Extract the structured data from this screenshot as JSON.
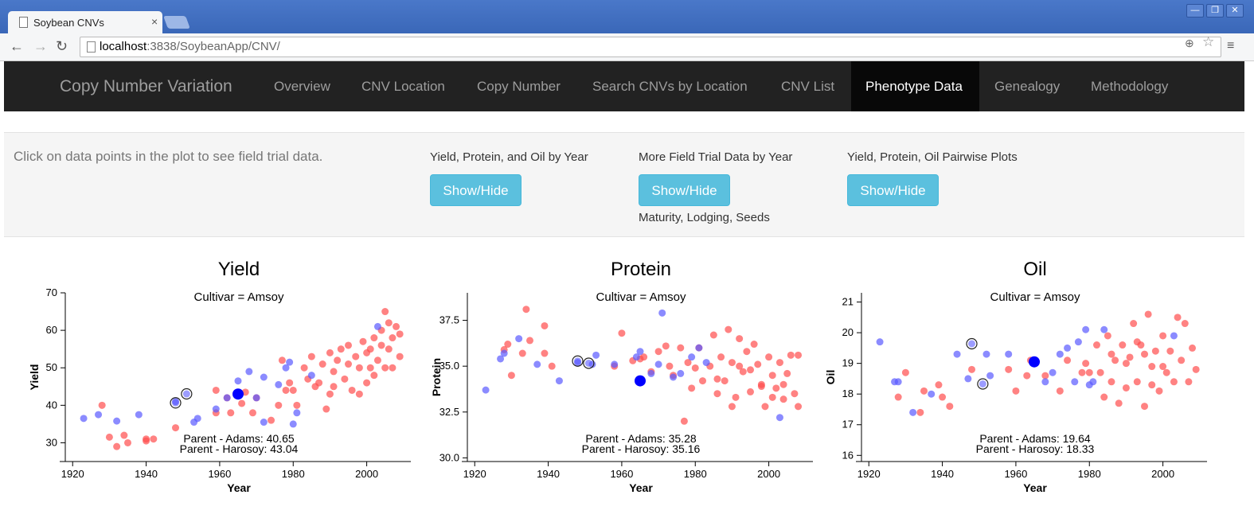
{
  "browser": {
    "tab_title": "Soybean CNVs",
    "tab_close": "×",
    "url_host": "localhost",
    "url_path": ":3838/SoybeanApp/CNV/",
    "window_buttons": [
      "—",
      "❐",
      "✕"
    ]
  },
  "navbar": {
    "brand": "Copy Number Variation",
    "items": [
      "Overview",
      "CNV Location",
      "Copy Number",
      "Search CNVs by Location",
      "CNV List",
      "Phenotype Data",
      "Genealogy",
      "Methodology"
    ],
    "active_index": 5
  },
  "panel": {
    "hint": "Click on data points in the plot to see field trial data.",
    "groups": [
      {
        "label": "Yield, Protein, and Oil by Year",
        "button": "Show/Hide",
        "sub": ""
      },
      {
        "label": "More Field Trial Data by Year",
        "button": "Show/Hide",
        "sub": "Maturity, Lodging, Seeds"
      },
      {
        "label": "Yield, Protein, Oil Pairwise Plots",
        "button": "Show/Hide",
        "sub": ""
      }
    ]
  },
  "colors": {
    "red": "#ff4d4d",
    "blue": "#5a5aff",
    "highlight": "#0000ff",
    "button": "#5bc0de"
  },
  "chart_data": [
    {
      "type": "scatter",
      "title": "Yield",
      "subtitle": "Cultivar = Amsoy",
      "xlabel": "Year",
      "ylabel": "Yield",
      "xlim": [
        1918,
        2012
      ],
      "ylim": [
        25,
        70
      ],
      "xticks": [
        1920,
        1940,
        1960,
        1980,
        2000
      ],
      "yticks": [
        30,
        40,
        50,
        60,
        70
      ],
      "ytick_labels": [
        "30",
        "40",
        "50",
        "60",
        "70"
      ],
      "annotations": [
        "Parent - Adams: 40.65",
        "Parent - Harosoy: 43.04"
      ],
      "highlight": {
        "x": 1965,
        "y": 43
      },
      "parents": [
        {
          "x": 1948,
          "y": 40.65
        },
        {
          "x": 1951,
          "y": 43.04
        }
      ],
      "series_blue": [
        [
          1923,
          36.5
        ],
        [
          1927,
          37.5
        ],
        [
          1932,
          35.8
        ],
        [
          1938,
          37.5
        ],
        [
          1948,
          41
        ],
        [
          1953,
          35.5
        ],
        [
          1954,
          36.5
        ],
        [
          1959,
          39
        ],
        [
          1962,
          42
        ],
        [
          1965,
          46.5
        ],
        [
          1968,
          49
        ],
        [
          1970,
          42
        ],
        [
          1972,
          47.5
        ],
        [
          1972,
          35.5
        ],
        [
          1976,
          45.5
        ],
        [
          1978,
          50
        ],
        [
          1979,
          51.5
        ],
        [
          1980,
          35
        ],
        [
          1981,
          38
        ],
        [
          1985,
          48
        ],
        [
          2003,
          61
        ]
      ],
      "series_red": [
        [
          1928,
          40
        ],
        [
          1930,
          31.5
        ],
        [
          1932,
          29
        ],
        [
          1934,
          32
        ],
        [
          1935,
          30
        ],
        [
          1940,
          31
        ],
        [
          1940,
          30.5
        ],
        [
          1942,
          31
        ],
        [
          1948,
          34
        ],
        [
          1959,
          38
        ],
        [
          1959,
          44
        ],
        [
          1962,
          42
        ],
        [
          1963,
          38
        ],
        [
          1966,
          40.5
        ],
        [
          1967,
          43.5
        ],
        [
          1969,
          38
        ],
        [
          1970,
          42
        ],
        [
          1974,
          36
        ],
        [
          1976,
          40
        ],
        [
          1977,
          52
        ],
        [
          1978,
          44
        ],
        [
          1979,
          46
        ],
        [
          1980,
          44
        ],
        [
          1981,
          40
        ],
        [
          1983,
          50
        ],
        [
          1984,
          47
        ],
        [
          1985,
          53
        ],
        [
          1986,
          45
        ],
        [
          1988,
          51
        ],
        [
          1989,
          39
        ],
        [
          1990,
          54
        ],
        [
          1990,
          43
        ],
        [
          1991,
          49
        ],
        [
          1992,
          52
        ],
        [
          1993,
          55
        ],
        [
          1994,
          47
        ],
        [
          1995,
          51
        ],
        [
          1995,
          56
        ],
        [
          1996,
          44
        ],
        [
          1997,
          53
        ],
        [
          1998,
          50
        ],
        [
          1999,
          57
        ],
        [
          2000,
          54
        ],
        [
          2000,
          46
        ],
        [
          2001,
          55
        ],
        [
          2002,
          58
        ],
        [
          2002,
          48
        ],
        [
          2003,
          52
        ],
        [
          2004,
          60
        ],
        [
          2004,
          56
        ],
        [
          2005,
          50
        ],
        [
          2005,
          65
        ],
        [
          2006,
          62
        ],
        [
          2006,
          55
        ],
        [
          2007,
          58
        ],
        [
          2007,
          50
        ],
        [
          2008,
          61
        ],
        [
          2009,
          53
        ],
        [
          2009,
          59
        ],
        [
          1987,
          46
        ],
        [
          1991,
          45
        ],
        [
          1998,
          43
        ],
        [
          2001,
          50
        ]
      ]
    },
    {
      "type": "scatter",
      "title": "Protein",
      "subtitle": "Cultivar = Amsoy",
      "xlabel": "Year",
      "ylabel": "Protein",
      "xlim": [
        1918,
        2012
      ],
      "ylim": [
        29.8,
        39
      ],
      "xticks": [
        1920,
        1940,
        1960,
        1980,
        2000
      ],
      "yticks": [
        30,
        32.5,
        35,
        37.5
      ],
      "ytick_labels": [
        "30.0",
        "32.5",
        "35.0",
        "37.5"
      ],
      "annotations": [
        "Parent - Adams: 35.28",
        "Parent - Harosoy: 35.16"
      ],
      "highlight": {
        "x": 1965,
        "y": 34.2
      },
      "parents": [
        {
          "x": 1948,
          "y": 35.28
        },
        {
          "x": 1951,
          "y": 35.16
        }
      ],
      "series_blue": [
        [
          1923,
          33.7
        ],
        [
          1927,
          35.4
        ],
        [
          1928,
          35.7
        ],
        [
          1932,
          36.5
        ],
        [
          1937,
          35.1
        ],
        [
          1943,
          34.2
        ],
        [
          1948,
          35.2
        ],
        [
          1952,
          35.1
        ],
        [
          1953,
          35.6
        ],
        [
          1958,
          35.1
        ],
        [
          1964,
          35.5
        ],
        [
          1965,
          35.8
        ],
        [
          1968,
          34.6
        ],
        [
          1970,
          35.1
        ],
        [
          1971,
          37.9
        ],
        [
          1974,
          34.4
        ],
        [
          1976,
          34.6
        ],
        [
          1979,
          35.5
        ],
        [
          1981,
          36
        ],
        [
          1983,
          35.2
        ],
        [
          2003,
          32.2
        ]
      ],
      "series_red": [
        [
          1928,
          35.9
        ],
        [
          1929,
          36.2
        ],
        [
          1930,
          34.5
        ],
        [
          1933,
          35.7
        ],
        [
          1934,
          38.1
        ],
        [
          1935,
          36.4
        ],
        [
          1939,
          37.2
        ],
        [
          1939,
          35.7
        ],
        [
          1941,
          35
        ],
        [
          1958,
          35
        ],
        [
          1960,
          36.8
        ],
        [
          1963,
          35.3
        ],
        [
          1965,
          35.4
        ],
        [
          1966,
          35.5
        ],
        [
          1968,
          34.7
        ],
        [
          1970,
          35.8
        ],
        [
          1972,
          36.1
        ],
        [
          1973,
          35
        ],
        [
          1974,
          34.5
        ],
        [
          1976,
          36
        ],
        [
          1977,
          32
        ],
        [
          1978,
          35.2
        ],
        [
          1979,
          33.8
        ],
        [
          1980,
          34.9
        ],
        [
          1981,
          36
        ],
        [
          1982,
          34.2
        ],
        [
          1984,
          35
        ],
        [
          1985,
          36.7
        ],
        [
          1986,
          33.5
        ],
        [
          1987,
          35.5
        ],
        [
          1988,
          34.2
        ],
        [
          1989,
          37
        ],
        [
          1990,
          35.2
        ],
        [
          1991,
          33.3
        ],
        [
          1992,
          36.5
        ],
        [
          1993,
          34.7
        ],
        [
          1994,
          35.8
        ],
        [
          1995,
          33.6
        ],
        [
          1996,
          36.2
        ],
        [
          1997,
          35.1
        ],
        [
          1998,
          34
        ],
        [
          1999,
          32.8
        ],
        [
          2000,
          35.5
        ],
        [
          2001,
          34.5
        ],
        [
          2002,
          33.8
        ],
        [
          2003,
          35.2
        ],
        [
          2004,
          33.2
        ],
        [
          2005,
          34.6
        ],
        [
          2006,
          35.6
        ],
        [
          2007,
          33.5
        ],
        [
          2008,
          35.6
        ],
        [
          2008,
          32.8
        ],
        [
          1995,
          34.8
        ],
        [
          1998,
          33.9
        ],
        [
          2001,
          33.3
        ],
        [
          1990,
          32.8
        ],
        [
          1986,
          34.3
        ],
        [
          1992,
          35
        ],
        [
          2004,
          34
        ]
      ]
    },
    {
      "type": "scatter",
      "title": "Oil",
      "subtitle": "Cultivar = Amsoy",
      "xlabel": "Year",
      "ylabel": "Oil",
      "xlim": [
        1918,
        2012
      ],
      "ylim": [
        15.8,
        21.3
      ],
      "xticks": [
        1920,
        1940,
        1960,
        1980,
        2000
      ],
      "yticks": [
        16,
        17,
        18,
        19,
        20,
        21
      ],
      "ytick_labels": [
        "16",
        "17",
        "18",
        "19",
        "20",
        "21"
      ],
      "annotations": [
        "Parent - Adams: 19.64",
        "Parent - Harosoy: 18.33"
      ],
      "highlight": {
        "x": 1965,
        "y": 19.05
      },
      "parents": [
        {
          "x": 1948,
          "y": 19.64
        },
        {
          "x": 1951,
          "y": 18.33
        }
      ],
      "series_blue": [
        [
          1923,
          19.7
        ],
        [
          1927,
          18.4
        ],
        [
          1928,
          18.4
        ],
        [
          1932,
          17.4
        ],
        [
          1937,
          18
        ],
        [
          1944,
          19.3
        ],
        [
          1947,
          18.5
        ],
        [
          1952,
          19.3
        ],
        [
          1953,
          18.6
        ],
        [
          1958,
          19.3
        ],
        [
          1965,
          19
        ],
        [
          1968,
          18.4
        ],
        [
          1970,
          18.7
        ],
        [
          1972,
          19.3
        ],
        [
          1974,
          19.5
        ],
        [
          1976,
          18.4
        ],
        [
          1977,
          19.7
        ],
        [
          1979,
          20.1
        ],
        [
          1980,
          18.3
        ],
        [
          1981,
          18.4
        ],
        [
          1984,
          20.1
        ],
        [
          2003,
          19.9
        ]
      ],
      "series_red": [
        [
          1928,
          17.9
        ],
        [
          1930,
          18.7
        ],
        [
          1934,
          17.4
        ],
        [
          1935,
          18.1
        ],
        [
          1939,
          18.3
        ],
        [
          1940,
          17.9
        ],
        [
          1942,
          17.6
        ],
        [
          1948,
          18.8
        ],
        [
          1958,
          18.8
        ],
        [
          1960,
          18.1
        ],
        [
          1963,
          18.6
        ],
        [
          1964,
          19.1
        ],
        [
          1968,
          18.6
        ],
        [
          1972,
          18.1
        ],
        [
          1974,
          19.1
        ],
        [
          1978,
          18.7
        ],
        [
          1979,
          19
        ],
        [
          1980,
          18.7
        ],
        [
          1982,
          19.6
        ],
        [
          1983,
          18.7
        ],
        [
          1984,
          17.9
        ],
        [
          1985,
          19.9
        ],
        [
          1986,
          18.4
        ],
        [
          1987,
          19.1
        ],
        [
          1988,
          17.7
        ],
        [
          1989,
          19.6
        ],
        [
          1990,
          18.2
        ],
        [
          1991,
          19.2
        ],
        [
          1992,
          20.3
        ],
        [
          1993,
          18.4
        ],
        [
          1994,
          19.6
        ],
        [
          1995,
          17.6
        ],
        [
          1996,
          20.6
        ],
        [
          1997,
          18.9
        ],
        [
          1998,
          19.4
        ],
        [
          1999,
          18.1
        ],
        [
          2000,
          19.9
        ],
        [
          2001,
          18.7
        ],
        [
          2002,
          19.4
        ],
        [
          2003,
          18.4
        ],
        [
          2004,
          20.5
        ],
        [
          2005,
          19.1
        ],
        [
          2006,
          20.3
        ],
        [
          2007,
          18.4
        ],
        [
          2008,
          19.5
        ],
        [
          2009,
          18.8
        ],
        [
          1990,
          19
        ],
        [
          1995,
          19.3
        ],
        [
          2000,
          18.9
        ],
        [
          1986,
          19.3
        ],
        [
          1993,
          19.7
        ],
        [
          1997,
          18.3
        ]
      ]
    }
  ]
}
